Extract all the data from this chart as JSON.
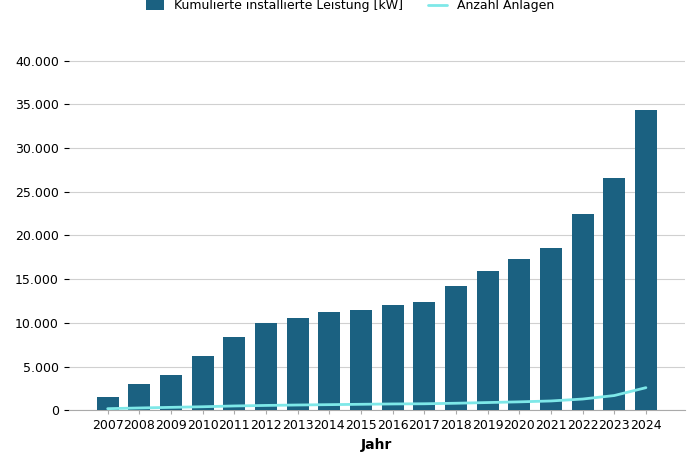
{
  "years": [
    2007,
    2008,
    2009,
    2010,
    2011,
    2012,
    2013,
    2014,
    2015,
    2016,
    2017,
    2018,
    2019,
    2020,
    2021,
    2022,
    2023,
    2024
  ],
  "leistung": [
    1500,
    3000,
    4100,
    6200,
    8400,
    10000,
    10600,
    11200,
    11500,
    12000,
    12350,
    14200,
    15900,
    17300,
    18600,
    22400,
    26600,
    34400
  ],
  "anlagen": [
    200,
    280,
    350,
    420,
    510,
    570,
    620,
    660,
    700,
    740,
    760,
    820,
    900,
    980,
    1080,
    1300,
    1700,
    2600
  ],
  "bar_color": "#1b6181",
  "line_color": "#7ee8e8",
  "background_color": "#ffffff",
  "grid_color": "#d0d0d0",
  "xlabel": "Jahr",
  "legend_labels": [
    "Kumulierte installierte Leistung [kW]",
    "Anzahl Anlagen"
  ],
  "ylim_left": [
    0,
    42000
  ],
  "yticks_left": [
    0,
    5000,
    10000,
    15000,
    20000,
    25000,
    30000,
    35000,
    40000
  ],
  "ylim_right": [
    0,
    42000
  ],
  "tick_fontsize": 9,
  "axis_fontsize": 10,
  "legend_fontsize": 9
}
